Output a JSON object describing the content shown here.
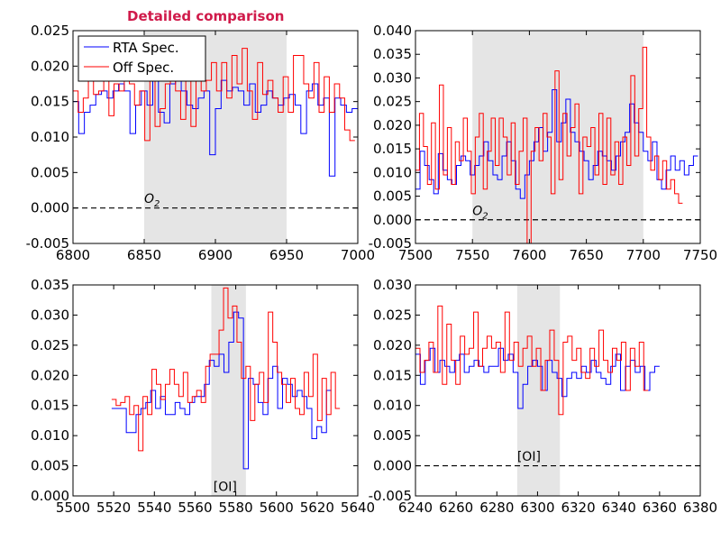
{
  "title": "Detailed comparison",
  "colors": {
    "rta": "#0000ff",
    "off": "#ff0000",
    "band": "#e5e5e5",
    "title": "#d01a4a"
  },
  "chart_data": [
    {
      "type": "line",
      "step": true,
      "legend": {
        "entries": [
          "RTA Spec.",
          "Off Spec."
        ],
        "placement": "top-left"
      },
      "xlim": [
        6800,
        7000
      ],
      "ylim": [
        -0.005,
        0.025
      ],
      "xticks": [
        "6800",
        "6850",
        "6900",
        "6950",
        "7000"
      ],
      "yticks": [
        "-0.005",
        "0.000",
        "0.005",
        "0.010",
        "0.015",
        "0.020",
        "0.025"
      ],
      "band": [
        6850,
        6950
      ],
      "annotation": {
        "text": "O",
        "sub": "2",
        "x": 6850,
        "y": 0.0002
      },
      "baseline": 0.0,
      "series": [
        {
          "name": "RTA Spec.",
          "x0": 6800,
          "dx": 4,
          "values": [
            0.015,
            0.0105,
            0.0135,
            0.0145,
            0.016,
            0.0165,
            0.0155,
            0.0165,
            0.0175,
            0.0165,
            0.0105,
            0.0145,
            0.0165,
            0.0145,
            0.018,
            0.0135,
            0.012,
            0.0175,
            0.0215,
            0.0165,
            0.0145,
            0.014,
            0.0155,
            0.0165,
            0.0075,
            0.014,
            0.018,
            0.0165,
            0.017,
            0.0165,
            0.0145,
            0.0175,
            0.0135,
            0.0145,
            0.0165,
            0.0155,
            0.0145,
            0.0155,
            0.016,
            0.0145,
            0.0105,
            0.0165,
            0.0175,
            0.0145,
            0.0155,
            0.0045,
            0.0155,
            0.0145,
            0.0135,
            0.014,
            0.0105
          ]
        },
        {
          "name": "Off Spec.",
          "x0": 6800,
          "dx": 3.6,
          "values": [
            0.0165,
            0.0135,
            0.0155,
            0.018,
            0.016,
            0.0165,
            0.02,
            0.013,
            0.0175,
            0.0165,
            0.018,
            0.0175,
            0.0145,
            0.0165,
            0.0095,
            0.0185,
            0.0115,
            0.014,
            0.0175,
            0.02,
            0.0165,
            0.0125,
            0.021,
            0.0115,
            0.019,
            0.0165,
            0.018,
            0.0205,
            0.0165,
            0.0205,
            0.0155,
            0.0215,
            0.0175,
            0.0225,
            0.0165,
            0.0125,
            0.0205,
            0.016,
            0.018,
            0.0155,
            0.0135,
            0.0185,
            0.0135,
            0.0215,
            0.0215,
            0.0175,
            0.0155,
            0.0205,
            0.0135,
            0.0185,
            0.0135,
            0.0175,
            0.0155,
            0.011,
            0.0095
          ]
        }
      ]
    },
    {
      "type": "line",
      "step": true,
      "xlim": [
        7500,
        7750
      ],
      "ylim": [
        -0.005,
        0.04
      ],
      "xticks": [
        "7500",
        "7550",
        "7600",
        "7650",
        "7700",
        "7750"
      ],
      "yticks": [
        "-0.005",
        "0.000",
        "0.005",
        "0.010",
        "0.015",
        "0.020",
        "0.025",
        "0.030",
        "0.035",
        "0.040"
      ],
      "band": [
        7550,
        7700
      ],
      "annotation": {
        "text": "O",
        "sub": "2",
        "x": 7550,
        "y": 0.0002
      },
      "baseline": 0.0,
      "series": [
        {
          "name": "RTA Spec.",
          "x0": 7500,
          "dx": 4,
          "values": [
            0.0065,
            0.0145,
            0.0115,
            0.0085,
            0.0055,
            0.014,
            0.0105,
            0.0085,
            0.0075,
            0.0115,
            0.0135,
            0.0125,
            0.0095,
            0.0115,
            0.0135,
            0.0165,
            0.0125,
            0.0095,
            0.0085,
            0.0135,
            0.0165,
            0.0125,
            0.0065,
            0.0045,
            0.0095,
            0.0125,
            0.0165,
            0.0195,
            0.0145,
            0.0185,
            0.0275,
            0.0165,
            0.0205,
            0.0255,
            0.0185,
            0.0165,
            0.0145,
            0.0125,
            0.0085,
            0.0115,
            0.0145,
            0.0135,
            0.0125,
            0.0105,
            0.0135,
            0.0165,
            0.0185,
            0.0245,
            0.0205,
            0.0185,
            0.0145,
            0.0125,
            0.0165,
            0.0085,
            0.0065,
            0.0105,
            0.0135,
            0.0105,
            0.0125,
            0.0095,
            0.0115,
            0.0135
          ]
        },
        {
          "name": "Off Spec.",
          "x0": 7500,
          "dx": 3.5,
          "values": [
            0.0105,
            0.0225,
            0.0155,
            0.0075,
            0.0205,
            0.0065,
            0.0285,
            0.0095,
            0.0195,
            0.0075,
            0.0165,
            0.0125,
            0.0215,
            0.0145,
            0.0055,
            0.0175,
            0.0225,
            0.0065,
            0.0145,
            0.0215,
            0.0115,
            0.0215,
            0.0175,
            0.0095,
            0.0205,
            0.0075,
            0.0145,
            0.0215,
            -0.005,
            0.0145,
            0.0195,
            0.0125,
            0.0225,
            0.0175,
            0.0055,
            0.0315,
            0.0085,
            0.0225,
            0.0135,
            0.0195,
            0.0245,
            0.0055,
            0.0175,
            0.0155,
            0.0195,
            0.0095,
            0.0225,
            0.0075,
            0.0215,
            0.0095,
            0.0165,
            0.0075,
            0.0175,
            0.0115,
            0.0305,
            0.0135,
            0.0235,
            0.0365,
            0.0175,
            0.0105,
            0.0135,
            0.0085,
            0.0125,
            0.0065,
            0.0085,
            0.0055,
            0.0035
          ]
        }
      ]
    },
    {
      "type": "line",
      "step": true,
      "xlim": [
        5500,
        5640
      ],
      "ylim": [
        0.0,
        0.035
      ],
      "xticks": [
        "5500",
        "5520",
        "5540",
        "5560",
        "5580",
        "5600",
        "5620",
        "5640"
      ],
      "yticks": [
        "0.000",
        "0.005",
        "0.010",
        "0.015",
        "0.020",
        "0.025",
        "0.030",
        "0.035"
      ],
      "band": [
        5568,
        5585
      ],
      "annotation": {
        "text": "[OI]",
        "x": 5569,
        "y": 0.0002
      },
      "series": [
        {
          "name": "RTA Spec.",
          "x0": 5519,
          "dx": 2.4,
          "values": [
            0.0145,
            0.0145,
            0.0145,
            0.0105,
            0.0105,
            0.0135,
            0.0145,
            0.0155,
            0.0175,
            0.0145,
            0.0165,
            0.0135,
            0.0135,
            0.0155,
            0.0145,
            0.0135,
            0.0155,
            0.0165,
            0.0165,
            0.0185,
            0.0225,
            0.0215,
            0.0235,
            0.0205,
            0.0255,
            0.0305,
            0.0295,
            0.0045,
            0.0195,
            0.0185,
            0.0155,
            0.0135,
            0.0195,
            0.0215,
            0.0145,
            0.0195,
            0.0185,
            0.0165,
            0.0175,
            0.0165,
            0.0145,
            0.0095,
            0.0115,
            0.0105,
            0.0175
          ]
        },
        {
          "name": "Off Spec.",
          "x0": 5519,
          "dx": 2.2,
          "values": [
            0.016,
            0.015,
            0.0155,
            0.0165,
            0.0135,
            0.015,
            0.0075,
            0.0165,
            0.0135,
            0.021,
            0.0185,
            0.016,
            0.0185,
            0.021,
            0.0185,
            0.0165,
            0.0205,
            0.0155,
            0.0165,
            0.0175,
            0.0155,
            0.0215,
            0.0235,
            0.0235,
            0.0275,
            0.0345,
            0.0295,
            0.0315,
            0.0255,
            0.0195,
            0.0215,
            0.0125,
            0.0185,
            0.0205,
            0.0155,
            0.0305,
            0.0255,
            0.0205,
            0.0185,
            0.0155,
            0.0195,
            0.0145,
            0.0135,
            0.0205,
            0.0165,
            0.0235,
            0.0125,
            0.0195,
            0.0135,
            0.0205,
            0.0145
          ]
        }
      ]
    },
    {
      "type": "line",
      "step": true,
      "xlim": [
        6240,
        6380
      ],
      "ylim": [
        -0.005,
        0.03
      ],
      "xticks": [
        "6240",
        "6260",
        "6280",
        "6300",
        "6320",
        "6340",
        "6360",
        "6380"
      ],
      "yticks": [
        "-0.005",
        "0.000",
        "0.005",
        "0.010",
        "0.015",
        "0.020",
        "0.025",
        "0.030"
      ],
      "band": [
        6290,
        6311
      ],
      "annotation": {
        "text": "[OI]",
        "x": 6290,
        "y": 0.0002
      },
      "baseline": 0.0,
      "series": [
        {
          "name": "RTA Spec.",
          "x0": 6240,
          "dx": 2.4,
          "values": [
            0.0185,
            0.0135,
            0.0175,
            0.0195,
            0.0155,
            0.0175,
            0.0165,
            0.0155,
            0.0175,
            0.0185,
            0.0155,
            0.0165,
            0.0175,
            0.0165,
            0.0155,
            0.0165,
            0.0165,
            0.0195,
            0.0175,
            0.0185,
            0.0155,
            0.0095,
            0.0135,
            0.0165,
            0.0175,
            0.0165,
            0.0125,
            0.0175,
            0.0155,
            0.0145,
            0.0115,
            0.0145,
            0.0155,
            0.0145,
            0.0165,
            0.0155,
            0.0175,
            0.0155,
            0.0145,
            0.0135,
            0.0165,
            0.0185,
            0.0125,
            0.0165,
            0.0175,
            0.0155,
            0.0165,
            0.0125,
            0.0155,
            0.0165
          ]
        },
        {
          "name": "Off Spec.",
          "x0": 6240,
          "dx": 2.2,
          "values": [
            0.0195,
            0.0155,
            0.0175,
            0.0205,
            0.0155,
            0.0265,
            0.0135,
            0.0235,
            0.0175,
            0.0135,
            0.0215,
            0.0185,
            0.0195,
            0.0255,
            0.0165,
            0.0195,
            0.0215,
            0.0195,
            0.0205,
            0.0155,
            0.0255,
            0.0175,
            0.0205,
            0.0165,
            0.0195,
            0.0215,
            0.0165,
            0.0195,
            0.0125,
            0.0175,
            0.0225,
            0.0175,
            0.0085,
            0.0205,
            0.0215,
            0.0175,
            0.0195,
            0.0155,
            0.0145,
            0.0195,
            0.0165,
            0.0225,
            0.0175,
            0.0155,
            0.0195,
            0.0175,
            0.0205,
            0.0125,
            0.0195,
            0.0165,
            0.0205,
            0.0125
          ]
        }
      ]
    }
  ]
}
